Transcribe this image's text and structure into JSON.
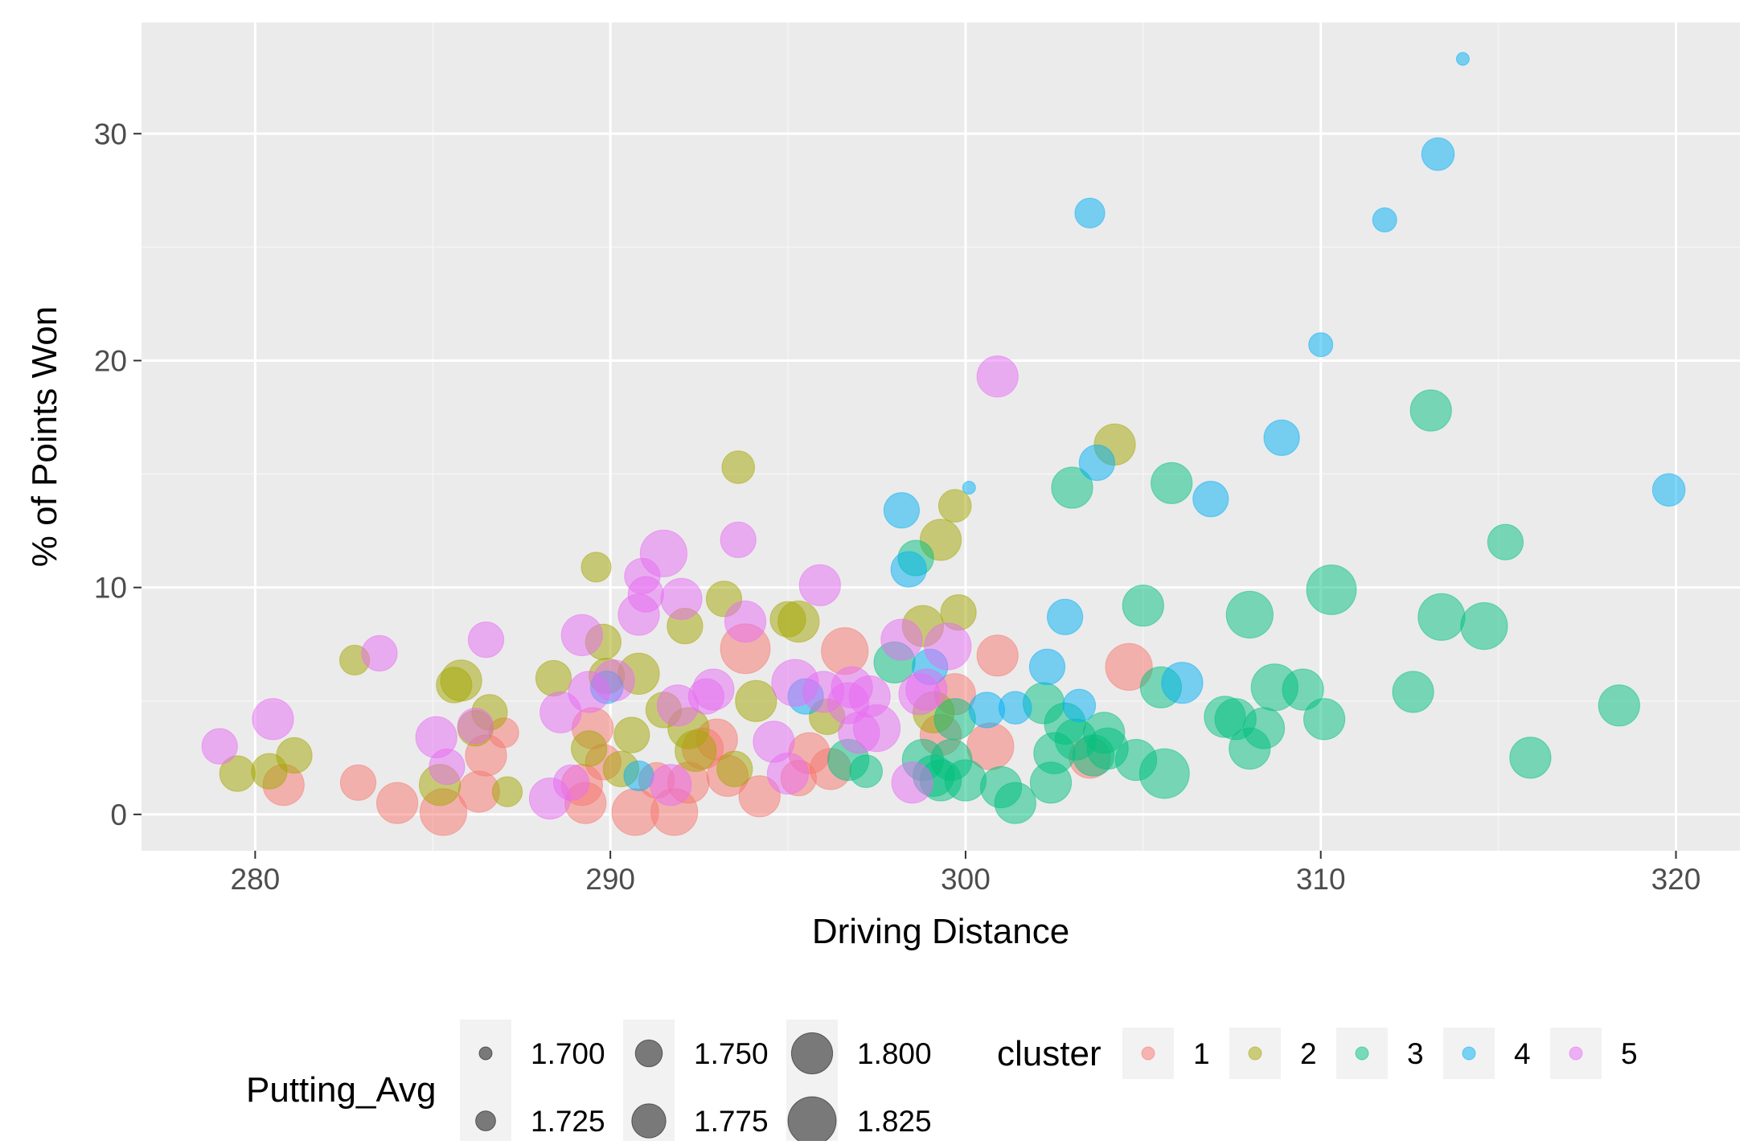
{
  "chart_data": {
    "type": "scatter",
    "xlabel": "Driving Distance",
    "ylabel": "% of Points Won",
    "xlim": [
      276.8,
      321.8
    ],
    "ylim": [
      -1.6,
      34.9
    ],
    "x_ticks": [
      280,
      290,
      300,
      310,
      320
    ],
    "y_ticks": [
      0,
      10,
      20,
      30
    ],
    "grid": true,
    "legend_placement": "bottom",
    "size_legend": {
      "title": "Putting_Avg",
      "entries": [
        "1.700",
        "1.725",
        "1.750",
        "1.775",
        "1.800",
        "1.825"
      ],
      "values": [
        1.7,
        1.725,
        1.75,
        1.775,
        1.8,
        1.825
      ]
    },
    "color_legend": {
      "title": "cluster",
      "entries": [
        "1",
        "2",
        "3",
        "4",
        "5"
      ]
    },
    "colors": {
      "1": "#F8766D",
      "2": "#A3A500",
      "3": "#00BF7D",
      "4": "#00B0F6",
      "5": "#E76BF3"
    },
    "series": [
      {
        "name": "1",
        "points": [
          [
            280.8,
            1.3,
            1.8
          ],
          [
            282.9,
            1.4,
            1.78
          ],
          [
            284.0,
            0.5,
            1.8
          ],
          [
            285.3,
            0.1,
            1.82
          ],
          [
            286.3,
            1.0,
            1.8
          ],
          [
            286.5,
            2.6,
            1.8
          ],
          [
            287.0,
            3.6,
            1.76
          ],
          [
            289.2,
            1.3,
            1.8
          ],
          [
            289.3,
            0.5,
            1.8
          ],
          [
            289.5,
            3.8,
            1.8
          ],
          [
            289.8,
            2.3,
            1.78
          ],
          [
            290.7,
            0.1,
            1.82
          ],
          [
            291.3,
            1.5,
            1.78
          ],
          [
            291.8,
            0.1,
            1.82
          ],
          [
            292.2,
            1.4,
            1.8
          ],
          [
            292.6,
            2.9,
            1.8
          ],
          [
            293.0,
            3.3,
            1.8
          ],
          [
            293.3,
            1.7,
            1.8
          ],
          [
            293.8,
            7.3,
            1.83
          ],
          [
            294.2,
            0.8,
            1.8
          ],
          [
            295.3,
            1.6,
            1.78
          ],
          [
            295.6,
            2.7,
            1.8
          ],
          [
            296.2,
            2.0,
            1.8
          ],
          [
            296.6,
            7.2,
            1.82
          ],
          [
            299.3,
            3.5,
            1.8
          ],
          [
            299.7,
            5.3,
            1.8
          ],
          [
            300.7,
            3.0,
            1.82
          ],
          [
            300.9,
            7.0,
            1.8
          ],
          [
            303.5,
            2.5,
            1.8
          ],
          [
            304.6,
            6.5,
            1.82
          ]
        ]
      },
      {
        "name": "2",
        "points": [
          [
            279.5,
            1.8,
            1.78
          ],
          [
            280.4,
            1.9,
            1.78
          ],
          [
            281.1,
            2.6,
            1.78
          ],
          [
            282.8,
            6.8,
            1.76
          ],
          [
            285.2,
            1.3,
            1.8
          ],
          [
            285.6,
            5.7,
            1.78
          ],
          [
            285.8,
            5.9,
            1.8
          ],
          [
            286.2,
            3.8,
            1.78
          ],
          [
            286.6,
            4.5,
            1.78
          ],
          [
            287.1,
            1.0,
            1.76
          ],
          [
            288.4,
            6.0,
            1.78
          ],
          [
            289.4,
            2.9,
            1.78
          ],
          [
            289.6,
            10.9,
            1.76
          ],
          [
            289.8,
            7.6,
            1.78
          ],
          [
            289.9,
            6.1,
            1.78
          ],
          [
            290.3,
            2.0,
            1.78
          ],
          [
            290.6,
            3.5,
            1.78
          ],
          [
            290.8,
            6.2,
            1.8
          ],
          [
            291.5,
            4.6,
            1.78
          ],
          [
            292.1,
            8.3,
            1.78
          ],
          [
            292.2,
            3.8,
            1.8
          ],
          [
            292.4,
            2.8,
            1.8
          ],
          [
            293.2,
            9.5,
            1.78
          ],
          [
            293.5,
            2.0,
            1.78
          ],
          [
            293.6,
            15.3,
            1.77
          ],
          [
            294.1,
            5.0,
            1.8
          ],
          [
            295.0,
            8.6,
            1.78
          ],
          [
            295.3,
            8.5,
            1.8
          ],
          [
            296.1,
            4.3,
            1.78
          ],
          [
            298.8,
            8.3,
            1.8
          ],
          [
            299.1,
            4.5,
            1.8
          ],
          [
            299.3,
            12.1,
            1.8
          ],
          [
            299.7,
            13.6,
            1.77
          ],
          [
            299.8,
            8.9,
            1.78
          ],
          [
            304.2,
            16.3,
            1.8
          ]
        ]
      },
      {
        "name": "3",
        "points": [
          [
            296.7,
            2.4,
            1.8
          ],
          [
            297.2,
            1.9,
            1.77
          ],
          [
            298.0,
            6.7,
            1.8
          ],
          [
            298.6,
            11.3,
            1.78
          ],
          [
            298.8,
            2.4,
            1.8
          ],
          [
            299.1,
            1.7,
            1.8
          ],
          [
            299.3,
            1.5,
            1.8
          ],
          [
            299.6,
            2.4,
            1.8
          ],
          [
            299.7,
            4.2,
            1.8
          ],
          [
            300.0,
            1.5,
            1.8
          ],
          [
            301.0,
            1.2,
            1.8
          ],
          [
            301.4,
            0.5,
            1.8
          ],
          [
            302.2,
            4.9,
            1.8
          ],
          [
            302.4,
            1.4,
            1.8
          ],
          [
            302.5,
            2.7,
            1.8
          ],
          [
            302.8,
            4.0,
            1.8
          ],
          [
            303.0,
            14.4,
            1.8
          ],
          [
            303.1,
            3.3,
            1.8
          ],
          [
            303.6,
            2.6,
            1.8
          ],
          [
            303.9,
            3.6,
            1.8
          ],
          [
            304.0,
            2.9,
            1.8
          ],
          [
            304.8,
            2.4,
            1.8
          ],
          [
            305.0,
            9.2,
            1.8
          ],
          [
            305.5,
            5.6,
            1.8
          ],
          [
            305.6,
            1.8,
            1.83
          ],
          [
            305.8,
            14.6,
            1.8
          ],
          [
            307.3,
            4.3,
            1.8
          ],
          [
            307.6,
            4.2,
            1.8
          ],
          [
            308.0,
            2.9,
            1.8
          ],
          [
            308.0,
            8.8,
            1.82
          ],
          [
            308.4,
            3.8,
            1.8
          ],
          [
            308.7,
            5.6,
            1.82
          ],
          [
            309.5,
            5.5,
            1.8
          ],
          [
            310.1,
            4.2,
            1.8
          ],
          [
            310.3,
            9.9,
            1.83
          ],
          [
            312.6,
            5.4,
            1.8
          ],
          [
            313.1,
            17.8,
            1.8
          ],
          [
            313.4,
            8.7,
            1.82
          ],
          [
            314.6,
            8.3,
            1.82
          ],
          [
            315.2,
            12.0,
            1.78
          ],
          [
            315.9,
            2.5,
            1.8
          ],
          [
            318.4,
            4.8,
            1.8
          ]
        ]
      },
      {
        "name": "4",
        "points": [
          [
            289.9,
            5.6,
            1.77
          ],
          [
            290.8,
            1.7,
            1.76
          ],
          [
            295.5,
            5.2,
            1.78
          ],
          [
            298.2,
            13.4,
            1.78
          ],
          [
            298.4,
            10.8,
            1.78
          ],
          [
            299.0,
            6.5,
            1.78
          ],
          [
            300.1,
            14.4,
            1.7
          ],
          [
            300.6,
            4.6,
            1.78
          ],
          [
            301.4,
            4.7,
            1.77
          ],
          [
            302.3,
            6.5,
            1.78
          ],
          [
            302.8,
            8.7,
            1.78
          ],
          [
            303.2,
            4.8,
            1.77
          ],
          [
            303.5,
            26.5,
            1.76
          ],
          [
            303.7,
            15.5,
            1.78
          ],
          [
            306.1,
            5.8,
            1.8
          ],
          [
            306.9,
            13.9,
            1.78
          ],
          [
            308.9,
            16.6,
            1.78
          ],
          [
            310.0,
            20.7,
            1.74
          ],
          [
            311.8,
            26.2,
            1.74
          ],
          [
            313.3,
            29.1,
            1.77
          ],
          [
            314.0,
            33.3,
            1.7
          ],
          [
            319.8,
            14.3,
            1.77
          ]
        ]
      },
      {
        "name": "5",
        "points": [
          [
            279.0,
            3.0,
            1.78
          ],
          [
            280.5,
            4.2,
            1.8
          ],
          [
            283.5,
            7.1,
            1.78
          ],
          [
            285.1,
            3.4,
            1.8
          ],
          [
            285.4,
            2.1,
            1.78
          ],
          [
            286.2,
            3.9,
            1.78
          ],
          [
            286.5,
            7.7,
            1.78
          ],
          [
            288.3,
            0.7,
            1.8
          ],
          [
            288.6,
            4.5,
            1.8
          ],
          [
            288.9,
            1.4,
            1.78
          ],
          [
            289.2,
            7.9,
            1.8
          ],
          [
            289.4,
            5.4,
            1.8
          ],
          [
            290.1,
            5.9,
            1.8
          ],
          [
            290.8,
            8.8,
            1.8
          ],
          [
            290.9,
            10.5,
            1.78
          ],
          [
            291.0,
            9.7,
            1.78
          ],
          [
            291.5,
            11.5,
            1.82
          ],
          [
            291.7,
            1.3,
            1.8
          ],
          [
            291.9,
            4.8,
            1.8
          ],
          [
            292.0,
            9.5,
            1.8
          ],
          [
            292.7,
            5.2,
            1.78
          ],
          [
            292.9,
            5.5,
            1.8
          ],
          [
            293.6,
            12.1,
            1.78
          ],
          [
            293.8,
            8.5,
            1.8
          ],
          [
            294.6,
            3.2,
            1.8
          ],
          [
            295.0,
            1.8,
            1.8
          ],
          [
            295.2,
            5.8,
            1.82
          ],
          [
            295.9,
            10.1,
            1.8
          ],
          [
            296.0,
            5.4,
            1.8
          ],
          [
            296.7,
            4.9,
            1.8
          ],
          [
            296.8,
            5.6,
            1.8
          ],
          [
            297.0,
            3.6,
            1.8
          ],
          [
            297.3,
            5.2,
            1.8
          ],
          [
            297.5,
            3.8,
            1.82
          ],
          [
            298.2,
            7.7,
            1.8
          ],
          [
            298.5,
            1.4,
            1.8
          ],
          [
            298.7,
            5.3,
            1.8
          ],
          [
            298.9,
            5.5,
            1.8
          ],
          [
            299.5,
            7.4,
            1.82
          ],
          [
            300.9,
            19.3,
            1.8
          ]
        ]
      }
    ]
  }
}
